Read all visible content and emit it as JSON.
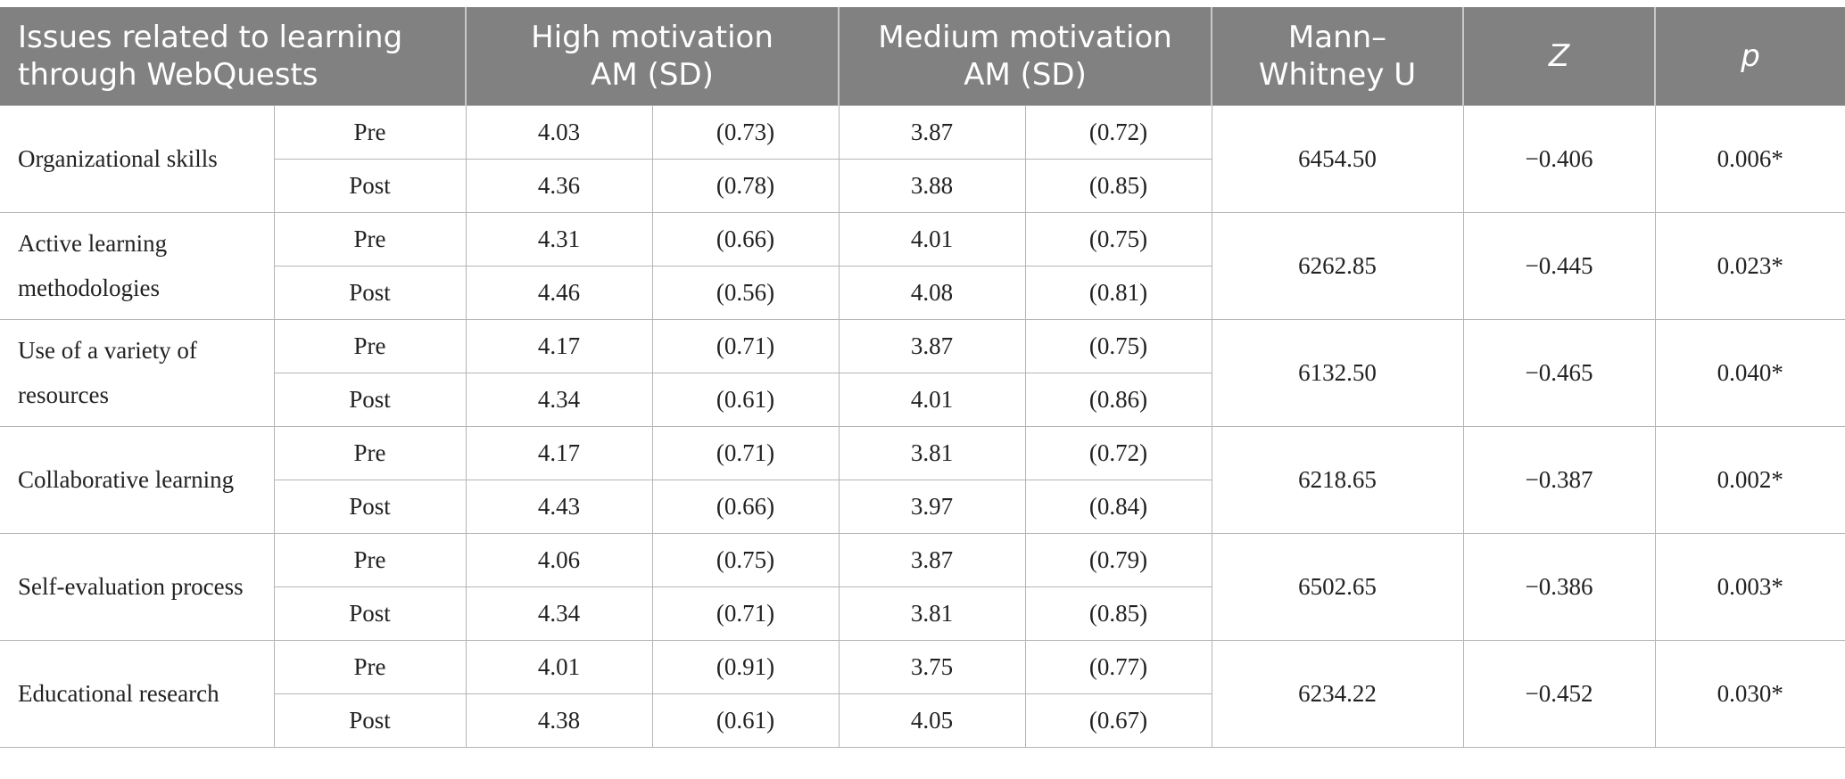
{
  "header": {
    "issues": "Issues related to learning through WebQuests",
    "high_line1": "High motivation",
    "high_line2": "AM (SD)",
    "medium_line1": "Medium motivation",
    "medium_line2": "AM (SD)",
    "mann_line1": "Mann–",
    "mann_line2": "Whitney U",
    "z": "Z",
    "p": "p"
  },
  "rows": [
    {
      "label": "Organizational skills",
      "pre": {
        "phase": "Pre",
        "high_am": "4.03",
        "high_sd": "(0.73)",
        "med_am": "3.87",
        "med_sd": "(0.72)"
      },
      "post": {
        "phase": "Post",
        "high_am": "4.36",
        "high_sd": "(0.78)",
        "med_am": "3.88",
        "med_sd": "(0.85)"
      },
      "u": "6454.50",
      "z": "−0.406",
      "p": "0.006*"
    },
    {
      "label": "Active learning methodologies",
      "pre": {
        "phase": "Pre",
        "high_am": "4.31",
        "high_sd": "(0.66)",
        "med_am": "4.01",
        "med_sd": "(0.75)"
      },
      "post": {
        "phase": "Post",
        "high_am": "4.46",
        "high_sd": "(0.56)",
        "med_am": "4.08",
        "med_sd": "(0.81)"
      },
      "u": "6262.85",
      "z": "−0.445",
      "p": "0.023*"
    },
    {
      "label": "Use of a variety of resources",
      "pre": {
        "phase": "Pre",
        "high_am": "4.17",
        "high_sd": "(0.71)",
        "med_am": "3.87",
        "med_sd": "(0.75)"
      },
      "post": {
        "phase": "Post",
        "high_am": "4.34",
        "high_sd": "(0.61)",
        "med_am": "4.01",
        "med_sd": "(0.86)"
      },
      "u": "6132.50",
      "z": "−0.465",
      "p": "0.040*"
    },
    {
      "label": "Collaborative learning",
      "pre": {
        "phase": "Pre",
        "high_am": "4.17",
        "high_sd": "(0.71)",
        "med_am": "3.81",
        "med_sd": "(0.72)"
      },
      "post": {
        "phase": "Post",
        "high_am": "4.43",
        "high_sd": "(0.66)",
        "med_am": "3.97",
        "med_sd": "(0.84)"
      },
      "u": "6218.65",
      "z": "−0.387",
      "p": "0.002*"
    },
    {
      "label": "Self-evaluation process",
      "pre": {
        "phase": "Pre",
        "high_am": "4.06",
        "high_sd": "(0.75)",
        "med_am": "3.87",
        "med_sd": "(0.79)"
      },
      "post": {
        "phase": "Post",
        "high_am": "4.34",
        "high_sd": "(0.71)",
        "med_am": "3.81",
        "med_sd": "(0.85)"
      },
      "u": "6502.65",
      "z": "−0.386",
      "p": "0.003*"
    },
    {
      "label": "Educational research",
      "pre": {
        "phase": "Pre",
        "high_am": "4.01",
        "high_sd": "(0.91)",
        "med_am": "3.75",
        "med_sd": "(0.77)"
      },
      "post": {
        "phase": "Post",
        "high_am": "4.38",
        "high_sd": "(0.61)",
        "med_am": "4.05",
        "med_sd": "(0.67)"
      },
      "u": "6234.22",
      "z": "−0.452",
      "p": "0.030*"
    }
  ]
}
